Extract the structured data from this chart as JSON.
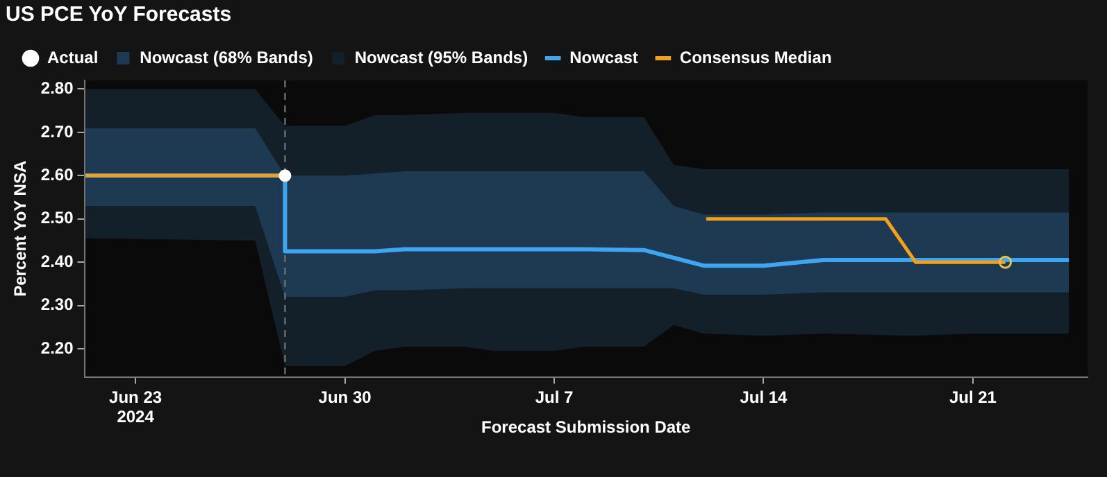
{
  "chart_data": {
    "type": "line",
    "title": "US PCE YoY Forecasts",
    "xlabel": "Forecast Submission Date",
    "ylabel": "Percent YoY NSA",
    "x": [
      "2024-06-21T08:00",
      "2024-06-27",
      "2024-06-28",
      "2024-06-28",
      "2024-06-30",
      "2024-07-01",
      "2024-07-02",
      "2024-07-04",
      "2024-07-05",
      "2024-07-07",
      "2024-07-08",
      "2024-07-10",
      "2024-07-11",
      "2024-07-12",
      "2024-07-14",
      "2024-07-16",
      "2024-07-19",
      "2024-07-21",
      "2024-07-24T05:00"
    ],
    "series": [
      {
        "name": "Actual",
        "type": "scatter",
        "color": "#ffffff",
        "marker": "circle",
        "x": [
          "2024-06-28"
        ],
        "values": [
          2.6
        ]
      },
      {
        "name": "Nowcast (68% Bands)",
        "type": "line",
        "color": "#1e3a52",
        "values": [
          null,
          null,
          null,
          null,
          null,
          null,
          null,
          null,
          null,
          null,
          null,
          null,
          null,
          null,
          null,
          null,
          null,
          null,
          null
        ],
        "lower": [
          2.53,
          2.53,
          2.32,
          2.32,
          2.32,
          2.335,
          2.335,
          2.34,
          2.34,
          2.34,
          2.34,
          2.34,
          2.34,
          2.325,
          2.325,
          2.33,
          2.33,
          2.33,
          2.33
        ],
        "upper": [
          2.71,
          2.71,
          2.6,
          2.6,
          2.6,
          2.605,
          2.61,
          2.61,
          2.61,
          2.61,
          2.61,
          2.61,
          2.53,
          2.51,
          2.51,
          2.515,
          2.515,
          2.515,
          2.515
        ]
      },
      {
        "name": "Nowcast (95% Bands)",
        "type": "line",
        "color": "#13202a",
        "values": [
          null,
          null,
          null,
          null,
          null,
          null,
          null,
          null,
          null,
          null,
          null,
          null,
          null,
          null,
          null,
          null,
          null,
          null,
          null
        ],
        "lower": [
          2.455,
          2.45,
          2.16,
          2.16,
          2.16,
          2.195,
          2.205,
          2.205,
          2.195,
          2.195,
          2.205,
          2.205,
          2.255,
          2.235,
          2.23,
          2.235,
          2.23,
          2.235,
          2.235
        ],
        "upper": [
          2.8,
          2.8,
          2.715,
          2.715,
          2.715,
          2.74,
          2.74,
          2.745,
          2.745,
          2.745,
          2.735,
          2.735,
          2.625,
          2.615,
          2.615,
          2.615,
          2.615,
          2.615,
          2.615
        ]
      },
      {
        "name": "Nowcast",
        "color": "#3ea6f0",
        "values": [
          2.6,
          2.6,
          2.6,
          2.425,
          2.425,
          2.425,
          2.43,
          2.43,
          2.43,
          2.43,
          2.43,
          2.428,
          2.41,
          2.392,
          2.392,
          2.405,
          2.405,
          2.405,
          2.405
        ]
      },
      {
        "name": "Consensus Median",
        "color": "#f5a01a",
        "x": [
          "2024-06-21T08:00",
          "2024-06-28",
          "2024-07-05",
          "2024-07-12T02:00",
          "2024-07-18T02:00",
          "2024-07-19T02:00",
          "2024-07-22T02:00"
        ],
        "values": [
          2.6,
          2.6,
          null,
          2.5,
          2.5,
          2.4,
          2.4
        ]
      },
      {
        "type": "scatter",
        "color": "#e8c050",
        "marker": "circle",
        "x": [
          "2024-07-22T02:00"
        ],
        "values": [
          2.4
        ]
      }
    ],
    "xlim": [
      "2024-06-21T07:00",
      "2024-07-24T20:00"
    ],
    "xticks": [
      {
        "value": "2024-06-23",
        "label": "Jun 23\n2024"
      },
      {
        "value": "2024-06-30",
        "label": "Jun 30"
      },
      {
        "value": "2024-07-07",
        "label": "Jul 7"
      },
      {
        "value": "2024-07-14",
        "label": "Jul 14"
      },
      {
        "value": "2024-07-21",
        "label": "Jul 21"
      }
    ],
    "ylim": [
      2.135,
      2.82
    ],
    "yticks": [
      {
        "value": 2.2,
        "label": "2.20"
      },
      {
        "value": 2.3,
        "label": "2.30"
      },
      {
        "value": 2.4,
        "label": "2.40"
      },
      {
        "value": 2.5,
        "label": "2.50"
      },
      {
        "value": 2.6,
        "label": "2.60"
      },
      {
        "value": 2.7,
        "label": "2.70"
      },
      {
        "value": 2.8,
        "label": "2.80"
      }
    ],
    "ref_lines": [
      {
        "axis": "x",
        "value": "2024-06-28",
        "color": "#6a6f75",
        "line_style": "dashed"
      }
    ],
    "grid": false,
    "legend": "top left",
    "line_style": "solid"
  }
}
